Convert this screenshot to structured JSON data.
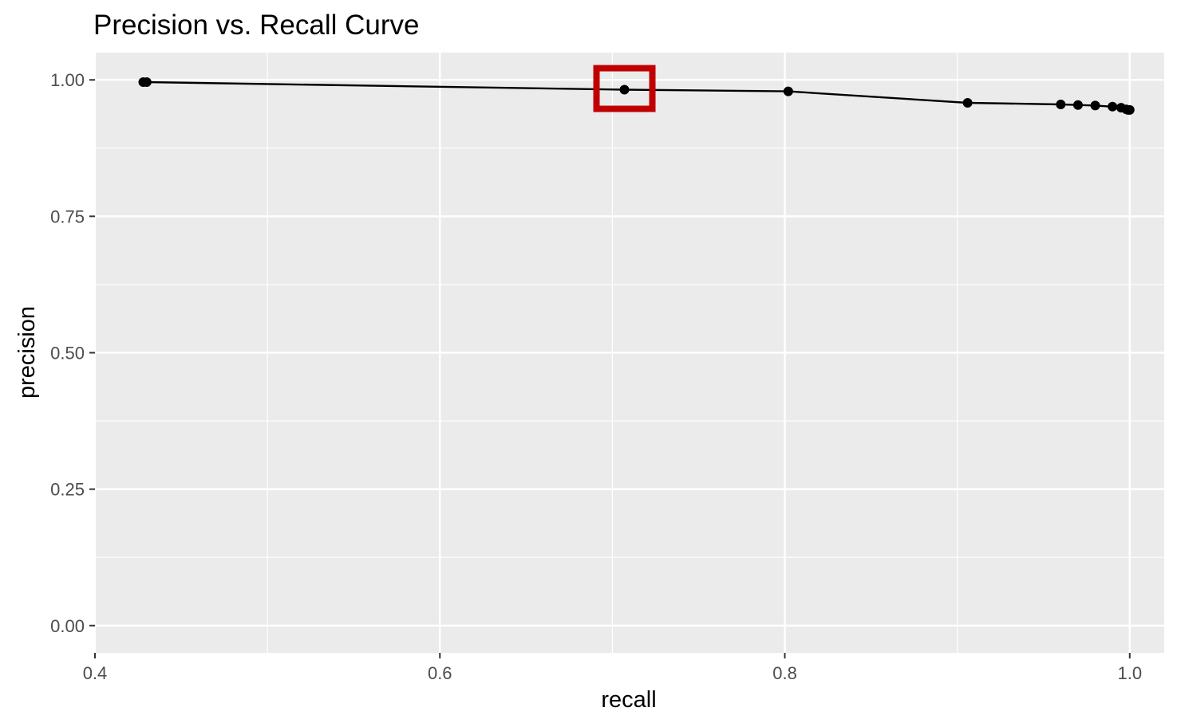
{
  "chart_data": {
    "type": "line",
    "title": "Precision vs. Recall Curve",
    "xlabel": "recall",
    "ylabel": "precision",
    "xlim": [
      0.4,
      1.02
    ],
    "ylim": [
      -0.05,
      1.05
    ],
    "x_ticks": [
      0.4,
      0.6,
      0.8,
      1.0
    ],
    "x_tick_labels": [
      "0.4",
      "0.6",
      "0.8",
      "1.0"
    ],
    "y_ticks": [
      0.0,
      0.25,
      0.5,
      0.75,
      1.0
    ],
    "y_tick_labels": [
      "0.00",
      "0.25",
      "0.50",
      "0.75",
      "1.00"
    ],
    "grid": true,
    "legend": "none",
    "panel_color": "#ebebeb",
    "grid_color": "#ffffff",
    "series_color": "#000000",
    "highlight_color": "#c00000",
    "series": [
      {
        "x": [
          0.428,
          0.43,
          0.707,
          0.802,
          0.906,
          0.96,
          0.97,
          0.98,
          0.99,
          0.995,
          0.998,
          0.999,
          1.0
        ],
        "y": [
          0.996,
          0.996,
          0.982,
          0.979,
          0.958,
          0.955,
          0.954,
          0.953,
          0.951,
          0.949,
          0.946,
          0.945,
          0.945
        ]
      }
    ],
    "highlight": {
      "x": 0.707,
      "y": 0.982
    }
  }
}
